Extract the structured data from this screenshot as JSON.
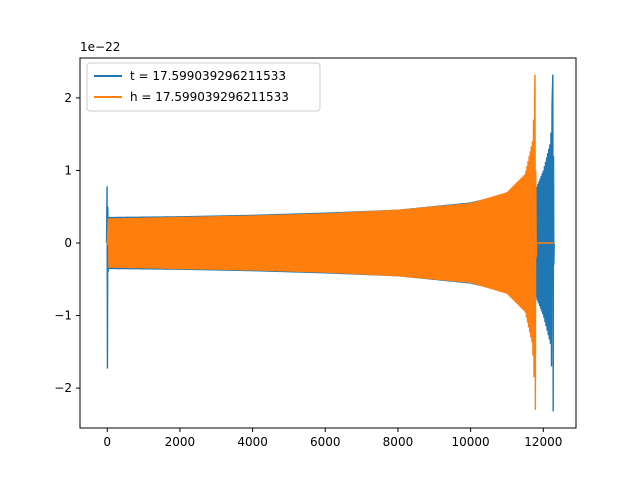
{
  "chart_data": {
    "type": "line",
    "title": "",
    "xlabel": "",
    "ylabel": "",
    "y_offset_label": "1e−22",
    "xlim": [
      -750,
      12900
    ],
    "ylim": [
      -2.55,
      2.55
    ],
    "x_ticks": [
      0,
      2000,
      4000,
      6000,
      8000,
      10000,
      12000
    ],
    "y_ticks": [
      -2,
      -1,
      0,
      1,
      2
    ],
    "y_tick_labels": [
      "−2",
      "−1",
      "0",
      "1",
      "2"
    ],
    "grid": false,
    "legend_position": "top-left",
    "series": [
      {
        "name": "t = 17.599039296211533",
        "color": "#1f77b4",
        "description": "blue waveform",
        "points": [
          {
            "x": 0,
            "y": 0.78
          },
          {
            "x": 0,
            "y": -1.73
          },
          {
            "x": 0,
            "y": 0.0
          },
          {
            "x": 500,
            "y": 0.36
          },
          {
            "x": 2000,
            "y": 0.37
          },
          {
            "x": 4000,
            "y": 0.39
          },
          {
            "x": 6000,
            "y": 0.42
          },
          {
            "x": 8000,
            "y": 0.46
          },
          {
            "x": 10000,
            "y": 0.56
          },
          {
            "x": 11000,
            "y": 0.68
          },
          {
            "x": 11800,
            "y": 0.75
          },
          {
            "x": 12000,
            "y": 1.0
          },
          {
            "x": 12200,
            "y": 1.4
          },
          {
            "x": 12270,
            "y": 2.32
          },
          {
            "x": 12280,
            "y": -2.32
          },
          {
            "x": 12300,
            "y": 0.0
          }
        ]
      },
      {
        "name": "h = 17.599039296211533",
        "color": "#ff7f0e",
        "description": "orange waveform",
        "points": [
          {
            "x": 0,
            "y": -0.02
          },
          {
            "x": 30,
            "y": 0.34
          },
          {
            "x": 2000,
            "y": 0.36
          },
          {
            "x": 4000,
            "y": 0.38
          },
          {
            "x": 6000,
            "y": 0.41
          },
          {
            "x": 8000,
            "y": 0.46
          },
          {
            "x": 10000,
            "y": 0.55
          },
          {
            "x": 11000,
            "y": 0.7
          },
          {
            "x": 11500,
            "y": 0.95
          },
          {
            "x": 11700,
            "y": 1.4
          },
          {
            "x": 11780,
            "y": 2.32
          },
          {
            "x": 11790,
            "y": -2.3
          },
          {
            "x": 11820,
            "y": 0.0
          },
          {
            "x": 12300,
            "y": 0.0
          }
        ]
      }
    ]
  }
}
